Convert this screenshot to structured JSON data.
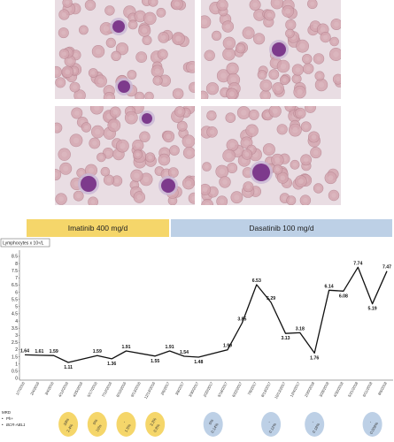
{
  "colors": {
    "imatinib": "#f5d66a",
    "dasatinib": "#bdd0e6",
    "line": "#111111",
    "cell_bg": "#e9dde3",
    "rbc": "#d4a6b0",
    "nucleus": "#7d3a8c"
  },
  "treatments": {
    "imatinib": "Imatinib 400 mg/d",
    "dasatinib": "Dasatinib 100 mg/d"
  },
  "chart_data": {
    "type": "line",
    "ylabel": "Lymphocytes x 10⁹/L",
    "ylim": [
      0,
      8.5
    ],
    "yticks": [
      "0",
      "0.5",
      "1",
      "1.5",
      "2",
      "2.5",
      "3",
      "3.5",
      "4",
      "4.5",
      "5",
      "5.5",
      "6",
      "6.5",
      "7",
      "7.5",
      "8",
      "8.5"
    ],
    "x_labels": [
      "1/7/2016",
      "2/4/2016",
      "3/4/2016",
      "4/12/2016",
      "4/25/2016",
      "5/17/2016",
      "7/12/2016",
      "8/10/2016",
      "9/13/2016",
      "12/13/2016",
      "2/6/2017",
      "3/8/2017",
      "3/30/2017",
      "2/20/2017",
      "5/18/2017",
      "6/22/2017",
      "7/8/2017",
      "8/13/2017",
      "10/13/2017",
      "12/4/2017",
      "2/20/2018",
      "3/28/2018",
      "4/30/2018",
      "5/21/2018",
      "6/11/2018",
      "8/6/2018"
    ],
    "points": [
      {
        "x_index": 0,
        "y": 1.64,
        "label": "1.64"
      },
      {
        "x_index": 1,
        "y": 1.61,
        "label": "1.61"
      },
      {
        "x_index": 2,
        "y": 1.59,
        "label": "1.59"
      },
      {
        "x_index": 3,
        "y": 1.11,
        "label": "1.11"
      },
      {
        "x_index": 5,
        "y": 1.59,
        "label": "1.59"
      },
      {
        "x_index": 6,
        "y": 1.36,
        "label": "1.36"
      },
      {
        "x_index": 7,
        "y": 1.91,
        "label": "1.91"
      },
      {
        "x_index": 9,
        "y": 1.55,
        "label": "1.55"
      },
      {
        "x_index": 10,
        "y": 1.91,
        "label": "1.91"
      },
      {
        "x_index": 11,
        "y": 1.54,
        "label": "1.54"
      },
      {
        "x_index": 12,
        "y": 1.48,
        "label": "1.48"
      },
      {
        "x_index": 14,
        "y": 1.99,
        "label": "1.99"
      },
      {
        "x_index": 15,
        "y": 3.85,
        "label": "3.85"
      },
      {
        "x_index": 16,
        "y": 6.53,
        "label": "6.53"
      },
      {
        "x_index": 17,
        "y": 5.29,
        "label": "5.29"
      },
      {
        "x_index": 18,
        "y": 3.13,
        "label": "3.13"
      },
      {
        "x_index": 19,
        "y": 3.18,
        "label": "3.18"
      },
      {
        "x_index": 20,
        "y": 1.76,
        "label": "1.76"
      },
      {
        "x_index": 21,
        "y": 6.14,
        "label": "6.14"
      },
      {
        "x_index": 22,
        "y": 6.08,
        "label": "6.08"
      },
      {
        "x_index": 23,
        "y": 7.74,
        "label": "7.74"
      },
      {
        "x_index": 24,
        "y": 5.19,
        "label": "5.19"
      },
      {
        "x_index": 25,
        "y": 7.47,
        "label": "7.47"
      }
    ]
  },
  "mrd": {
    "title": "MRD",
    "legend": [
      "Ph+",
      "BCR-ABL1"
    ],
    "ovals": [
      {
        "x_index": 3,
        "top": "33%",
        "bottom": "2.4%",
        "color": "imatinib"
      },
      {
        "x_index": 5,
        "top": "0%",
        "bottom": "10%",
        "color": "imatinib"
      },
      {
        "x_index": 7,
        "top": "-",
        "bottom": "1.5%",
        "color": "imatinib"
      },
      {
        "x_index": 9,
        "top": "3.3%",
        "bottom": "0.8%",
        "color": "imatinib"
      },
      {
        "x_index": 13,
        "top": "0%",
        "bottom": "0.14%",
        "color": "dasatinib"
      },
      {
        "x_index": 17,
        "top": "-",
        "bottom": "0.12%",
        "color": "dasatinib"
      },
      {
        "x_index": 20,
        "top": "-",
        "bottom": "0.18%",
        "color": "dasatinib"
      },
      {
        "x_index": 24,
        "top": "-",
        "bottom": "0.008%",
        "color": "dasatinib"
      }
    ]
  },
  "micrographs": [
    {
      "name": "micrograph-top-left"
    },
    {
      "name": "micrograph-top-right"
    },
    {
      "name": "micrograph-bottom-left"
    },
    {
      "name": "micrograph-bottom-right"
    }
  ]
}
